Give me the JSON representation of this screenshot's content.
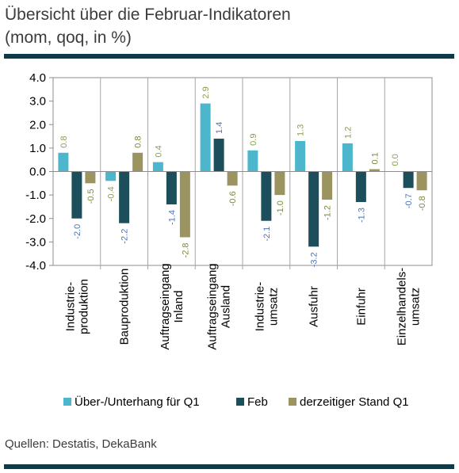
{
  "title_line1": "Übersicht über die Februar-Indikatoren",
  "title_line2": "(mom, qoq, in %)",
  "source": "Quellen: Destatis, DekaBank",
  "colors": {
    "s1": "#4bb6cc",
    "s2": "#1d4e5c",
    "s3": "#9c9460",
    "rule": "#0e3b48"
  },
  "chart_data": {
    "type": "bar",
    "categories": [
      [
        "Industrie-",
        "produktion"
      ],
      [
        "Bauproduktion"
      ],
      [
        "Auftragseingang",
        "Inland"
      ],
      [
        "Auftragseingang",
        "Ausland"
      ],
      [
        "Industrie-",
        "umsatz"
      ],
      [
        "Ausfuhr"
      ],
      [
        "Einfuhr"
      ],
      [
        "Einzelhandels-",
        "umsatz"
      ]
    ],
    "series": [
      {
        "name": "Über-/Unterhang für Q1",
        "values": [
          0.8,
          -0.4,
          0.4,
          2.9,
          0.9,
          1.3,
          1.2,
          0.0
        ]
      },
      {
        "name": "Feb",
        "values": [
          -2.0,
          -2.2,
          -1.4,
          1.4,
          -2.1,
          -3.2,
          -1.3,
          -0.7
        ]
      },
      {
        "name": "derzeitiger Stand Q1",
        "values": [
          -0.5,
          0.8,
          -2.8,
          -0.6,
          -1.0,
          -1.2,
          0.1,
          -0.8
        ]
      }
    ],
    "ylim": [
      -4.0,
      4.0
    ],
    "yticks": [
      "4.0",
      "3.0",
      "2.0",
      "1.0",
      "0.0",
      "-1.0",
      "-2.0",
      "-3.0",
      "-4.0"
    ],
    "grid": false,
    "legend": "bottom"
  }
}
